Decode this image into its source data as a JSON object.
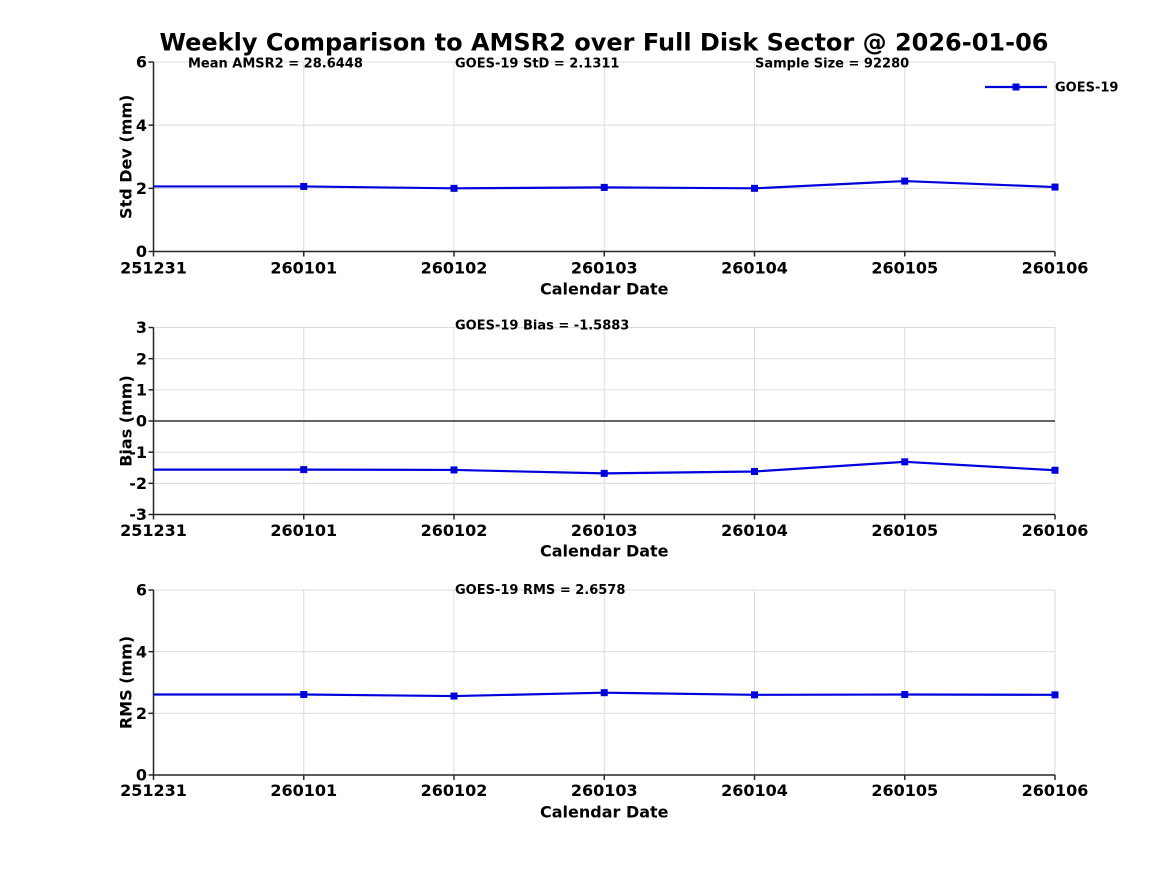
{
  "figure": {
    "title": "Weekly Comparison to AMSR2 over Full Disk Sector @ 2026-01-06",
    "background": "#ffffff"
  },
  "colors": {
    "series": "#0000DD",
    "grid": "#DCDCDC",
    "axis": "#262626",
    "zero_line": "#4D4D4D",
    "text": "#000000"
  },
  "legend": {
    "label": "GOES-19",
    "position": "top-right",
    "marker": "filled-square",
    "line_color": "#0000DD"
  },
  "chart_data": [
    {
      "type": "line",
      "ylabel": "Std Dev (mm)",
      "xlabel": "Calendar Date",
      "categories": [
        "251231",
        "260101",
        "260102",
        "260103",
        "260104",
        "260105",
        "260106"
      ],
      "series": [
        {
          "name": "GOES-19",
          "values": [
            2.06,
            2.06,
            2.0,
            2.03,
            2.0,
            2.23,
            2.04
          ]
        }
      ],
      "ylim": [
        0,
        6
      ],
      "yticks": [
        0,
        2,
        4,
        6
      ],
      "grid": true,
      "legend_visible": true,
      "annotations": [
        {
          "text": "Mean AMSR2 = 28.6448"
        },
        {
          "text": "GOES-19 StD = 2.1311"
        },
        {
          "text": "Sample Size = 92280"
        }
      ]
    },
    {
      "type": "line",
      "ylabel": "Bias (mm)",
      "xlabel": "Calendar Date",
      "categories": [
        "251231",
        "260101",
        "260102",
        "260103",
        "260104",
        "260105",
        "260106"
      ],
      "series": [
        {
          "name": "GOES-19",
          "values": [
            -1.56,
            -1.56,
            -1.57,
            -1.68,
            -1.62,
            -1.31,
            -1.58
          ]
        }
      ],
      "ylim": [
        -3,
        3
      ],
      "yticks": [
        -3,
        -2,
        -1,
        0,
        1,
        2,
        3
      ],
      "grid": true,
      "zero_line": true,
      "legend_visible": false,
      "annotations": [
        {
          "text": "GOES-19 Bias  = -1.5883"
        }
      ]
    },
    {
      "type": "line",
      "ylabel": "RMS (mm)",
      "xlabel": "Calendar Date",
      "categories": [
        "251231",
        "260101",
        "260102",
        "260103",
        "260104",
        "260105",
        "260106"
      ],
      "series": [
        {
          "name": "GOES-19",
          "values": [
            2.61,
            2.61,
            2.56,
            2.67,
            2.6,
            2.61,
            2.6
          ]
        }
      ],
      "ylim": [
        0,
        6
      ],
      "yticks": [
        0,
        2,
        4,
        6
      ],
      "grid": true,
      "legend_visible": false,
      "annotations": [
        {
          "text": "GOES-19 RMS = 2.6578"
        }
      ]
    }
  ]
}
